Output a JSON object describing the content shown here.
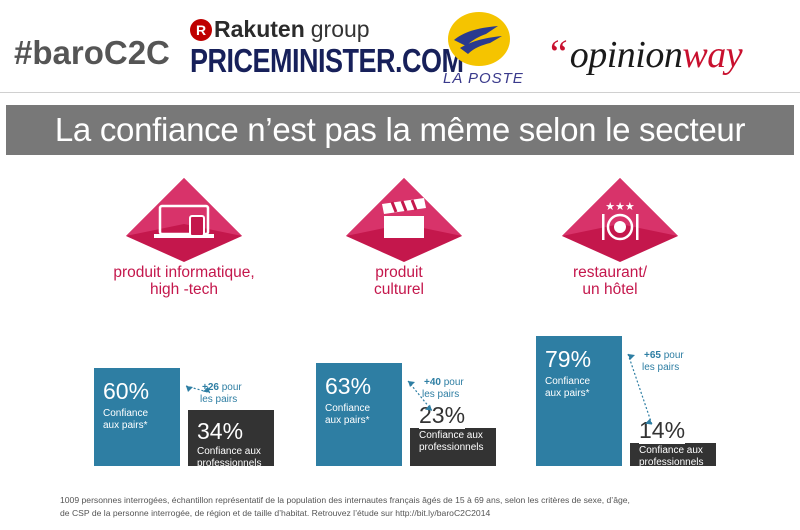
{
  "header": {
    "hashtag": "#baroC2C",
    "rakuten_mark": "R",
    "rakuten_brand": "Rakuten",
    "rakuten_group": "group",
    "priceminister": "PRICEMINISTER.COM",
    "laposte": "LA POSTE",
    "opinionway_quote": "“",
    "opinionway_part1": "opinion",
    "opinionway_part2": "way"
  },
  "title": "La confiance n’est pas la même selon le secteur",
  "colors": {
    "peer_bar": "#2e7ea3",
    "pro_bar": "#333333",
    "accent_pink": "#c4174c",
    "title_band": "#787878"
  },
  "chart_data": {
    "type": "bar",
    "categories": [
      "produit informatique, high -tech",
      "produit culturel",
      "restaurant/ un hôtel"
    ],
    "series": [
      {
        "name": "Confiance aux pairs*",
        "values": [
          60,
          63,
          79
        ]
      },
      {
        "name": "Confiance aux professionnels",
        "values": [
          34,
          23,
          14
        ]
      }
    ],
    "differences": [
      26,
      40,
      65
    ],
    "unit": "%"
  },
  "sectors": [
    {
      "icon": "laptop-tablet-phone-icon",
      "label_line1": "produit informatique,",
      "label_line2": "high -tech",
      "peer_value": "60%",
      "peer_caption_1": "Confiance",
      "peer_caption_2": "aux pairs*",
      "pro_value": "34%",
      "pro_caption_1": "Confiance aux",
      "pro_caption_2": "professionnels",
      "diff_value": "+26",
      "diff_text_1": "pour",
      "diff_text_2": "les pairs"
    },
    {
      "icon": "clapperboard-icon",
      "label_line1": "produit",
      "label_line2": "culturel",
      "peer_value": "63%",
      "peer_caption_1": "Confiance",
      "peer_caption_2": "aux pairs*",
      "pro_value": "23%",
      "pro_caption_1": "Confiance aux",
      "pro_caption_2": "professionnels",
      "diff_value": "+40",
      "diff_text_1": "pour",
      "diff_text_2": "les pairs"
    },
    {
      "icon": "hotel-dining-icon",
      "label_line1": "restaurant/",
      "label_line2": "un hôtel",
      "peer_value": "79%",
      "peer_caption_1": "Confiance",
      "peer_caption_2": "aux pairs*",
      "pro_value": "14%",
      "pro_caption_1": "Confiance aux",
      "pro_caption_2": "professionnels",
      "diff_value": "+65",
      "diff_text_1": "pour",
      "diff_text_2": "les pairs",
      "stars": "★★★"
    }
  ],
  "footnote_line1": "1009 personnes interrogées, échantillon représentatif de la population des internautes français âgés de 15 à 69 ans, selon les critères de sexe, d’âge,",
  "footnote_line2": "de CSP de la personne interrogée, de région et de taille d’habitat. Retrouvez l’étude sur http://bit.ly/baroC2C2014"
}
